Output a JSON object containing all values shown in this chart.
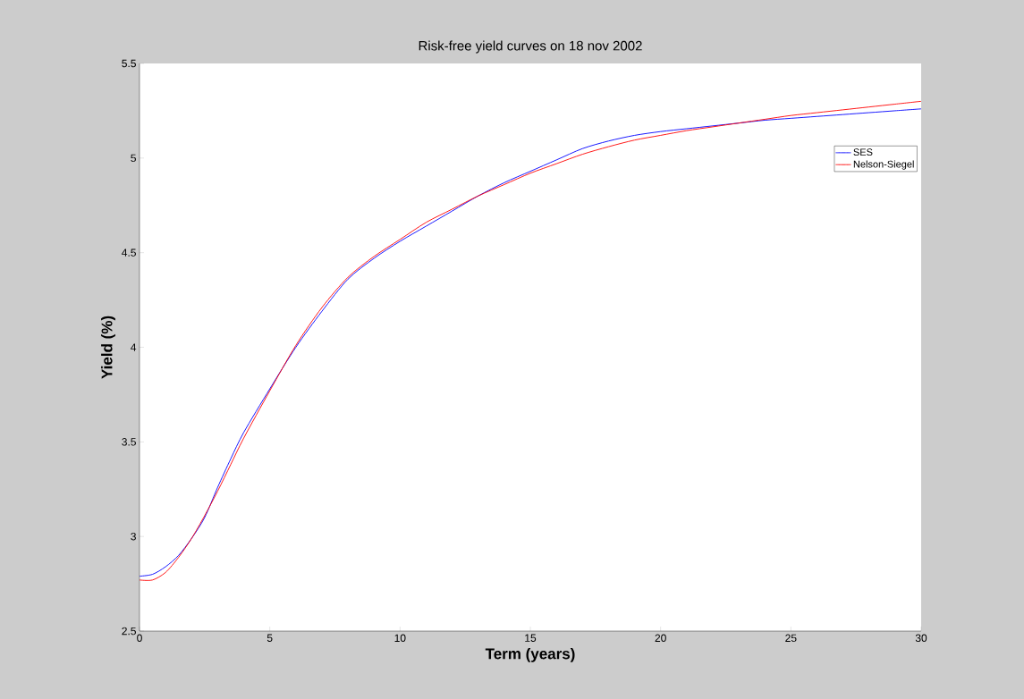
{
  "chart_data": {
    "type": "line",
    "title": "Risk-free yield curves on 18 nov 2002",
    "xlabel": "Term (years)",
    "ylabel": "Yield (%)",
    "x": [
      0,
      0.5,
      1,
      1.5,
      2,
      2.5,
      3,
      3.5,
      4,
      5,
      6,
      7,
      8,
      9,
      10,
      11,
      12,
      13,
      14,
      15,
      16,
      17,
      18,
      19,
      20,
      21,
      22,
      23,
      24,
      25,
      26,
      27,
      28,
      29,
      30
    ],
    "series": [
      {
        "name": "SES",
        "color": "#0000ff",
        "values": [
          2.79,
          2.8,
          2.84,
          2.9,
          2.99,
          3.1,
          3.26,
          3.41,
          3.55,
          3.78,
          4.0,
          4.19,
          4.36,
          4.47,
          4.56,
          4.64,
          4.72,
          4.8,
          4.87,
          4.93,
          4.99,
          5.05,
          5.09,
          5.12,
          5.14,
          5.155,
          5.17,
          5.185,
          5.2,
          5.21,
          5.22,
          5.23,
          5.24,
          5.25,
          5.26
        ]
      },
      {
        "name": "Nelson-Siegel",
        "color": "#ff0000",
        "values": [
          2.77,
          2.77,
          2.81,
          2.89,
          2.99,
          3.11,
          3.24,
          3.38,
          3.52,
          3.77,
          4.01,
          4.21,
          4.37,
          4.48,
          4.57,
          4.66,
          4.73,
          4.8,
          4.86,
          4.92,
          4.97,
          5.02,
          5.06,
          5.095,
          5.12,
          5.145,
          5.165,
          5.185,
          5.205,
          5.225,
          5.24,
          5.255,
          5.27,
          5.285,
          5.3
        ]
      }
    ],
    "xlim": [
      0,
      30
    ],
    "ylim": [
      2.5,
      5.5
    ],
    "xticks": [
      0,
      5,
      10,
      15,
      20,
      25,
      30
    ],
    "yticks": [
      2.5,
      3,
      3.5,
      4,
      4.5,
      5,
      5.5
    ],
    "legend": "top right",
    "grid": false,
    "marker": "none",
    "line_style": "solid"
  }
}
